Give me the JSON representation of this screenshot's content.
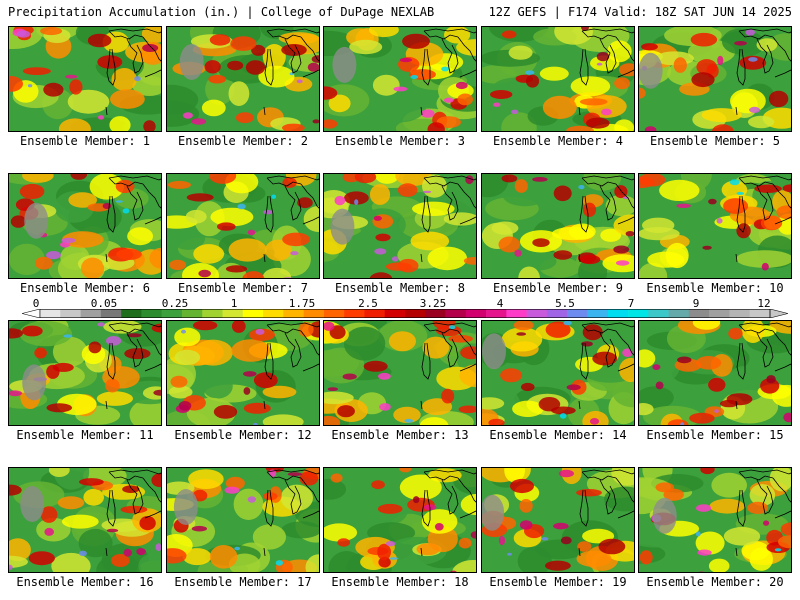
{
  "header": {
    "left": "Precipitation Accumulation (in.) | College of DuPage NEXLAB",
    "right": "12Z GEFS | F174 Valid: 18Z SAT JUN 14 2025"
  },
  "members": [
    {
      "label": "Ensemble Member: 1"
    },
    {
      "label": "Ensemble Member: 2"
    },
    {
      "label": "Ensemble Member: 3"
    },
    {
      "label": "Ensemble Member: 4"
    },
    {
      "label": "Ensemble Member: 5"
    },
    {
      "label": "Ensemble Member: 6"
    },
    {
      "label": "Ensemble Member: 7"
    },
    {
      "label": "Ensemble Member: 8"
    },
    {
      "label": "Ensemble Member: 9"
    },
    {
      "label": "Ensemble Member: 10"
    },
    {
      "label": "Ensemble Member: 11"
    },
    {
      "label": "Ensemble Member: 12"
    },
    {
      "label": "Ensemble Member: 13"
    },
    {
      "label": "Ensemble Member: 14"
    },
    {
      "label": "Ensemble Member: 15"
    },
    {
      "label": "Ensemble Member: 16"
    },
    {
      "label": "Ensemble Member: 17"
    },
    {
      "label": "Ensemble Member: 18"
    },
    {
      "label": "Ensemble Member: 19"
    },
    {
      "label": "Ensemble Member: 20"
    }
  ],
  "colorbar": {
    "labels": [
      "0",
      "0.05",
      "0.25",
      "1",
      "1.75",
      "2.5",
      "3.25",
      "4",
      "5.5",
      "7",
      "9",
      "12"
    ],
    "colors": [
      "#e6e6e6",
      "#c8c8c8",
      "#a0a0a0",
      "#787878",
      "#1e6e1e",
      "#2d8c2d",
      "#3ca03c",
      "#64b432",
      "#a0d232",
      "#d2e632",
      "#ffff00",
      "#ffdc00",
      "#ffb400",
      "#ff8c00",
      "#ff6400",
      "#ff3c00",
      "#f01e00",
      "#d20000",
      "#b40000",
      "#9a0020",
      "#b4004a",
      "#d2006e",
      "#e6148c",
      "#ff3cc8",
      "#c85adc",
      "#a064e6",
      "#6e8cf0",
      "#3cb4f0",
      "#00dcf0",
      "#00e6e6",
      "#3cc8c8",
      "#64aaaa",
      "#8c8c8c",
      "#a0a0a0",
      "#b4b4b4",
      "#c8c8c8"
    ]
  }
}
